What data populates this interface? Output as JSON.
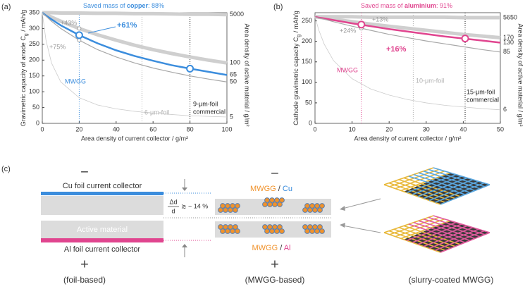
{
  "panels": [
    "(a)",
    "(b)",
    "(c)"
  ],
  "chart_data": [
    {
      "type": "line",
      "saved_mass": [
        "Saved mass of ",
        "copper",
        ": 88%"
      ],
      "title_color": "#3b8ddd",
      "xlabel": "Area density of current collector / g/m²",
      "ylabel": [
        "Gravimetric capacity of anode C",
        "g",
        " / mAh/g"
      ],
      "y2label": "Area density of active material / g/m²",
      "x": [
        0,
        2,
        5,
        10,
        20,
        30,
        40,
        50,
        60,
        70,
        80,
        90,
        100
      ],
      "xlim": [
        0,
        100
      ],
      "xticks": [
        0,
        20,
        40,
        60,
        80,
        100
      ],
      "ylim": [
        0,
        350
      ],
      "yticks": [
        0,
        50,
        100,
        150,
        200,
        250,
        300,
        350
      ],
      "series": [
        {
          "name": "5000",
          "color": "#cfcfcf",
          "line_width": 5,
          "values": [
            350,
            350,
            350,
            349,
            349,
            348,
            348,
            347,
            347,
            346,
            345,
            345,
            344
          ]
        },
        {
          "name": "100",
          "color": "#cfcfcf",
          "line_width": 5,
          "values": [
            350,
            344,
            336,
            323,
            300,
            280,
            263,
            247,
            233,
            221,
            210,
            200,
            191
          ]
        },
        {
          "name": "65",
          "color": "#3b8ddd",
          "line_width": 2.5,
          "values": [
            350,
            341,
            329,
            310,
            279,
            253,
            231,
            213,
            198,
            184,
            173,
            163,
            153
          ]
        },
        {
          "name": "50",
          "color": "#a8a8a8",
          "line_width": 1.2,
          "values": [
            350,
            339,
            323,
            300,
            263,
            233,
            210,
            191,
            175,
            162,
            150,
            140,
            131
          ]
        },
        {
          "name": "5",
          "color": "#cccccc",
          "line_width": 0.8,
          "values": [
            350,
            263,
            191,
            131,
            81,
            58,
            46,
            38,
            32,
            28,
            24,
            22,
            20
          ]
        }
      ],
      "vlines": [
        {
          "x": 20,
          "color": "#3b8ddd"
        },
        {
          "x": 54,
          "color": "#b0b0b0"
        },
        {
          "x": 80,
          "color": "#222222"
        }
      ],
      "points": [
        {
          "x": 20,
          "y": 300,
          "color": "#999999",
          "r": 2.5
        },
        {
          "x": 20,
          "y": 263,
          "color": "#999999",
          "r": 2.5
        },
        {
          "x": 20,
          "y": 279,
          "color": "#3b8ddd",
          "r": 4.5
        },
        {
          "x": 80,
          "y": 173,
          "color": "#3b8ddd",
          "r": 4.5
        }
      ],
      "annotations": [
        {
          "text": "+43%",
          "color": "#999999"
        },
        {
          "text": "+75%",
          "color": "#999999"
        },
        {
          "text": "+61%",
          "color": "#3b8ddd",
          "weight": "bold"
        },
        {
          "text": "MWGG",
          "color": "#3b8ddd"
        },
        {
          "text": "6-μm-foil",
          "color": "#b0b0b0"
        },
        {
          "text": "9-μm-foil",
          "color": "#222222"
        },
        {
          "text": "commercial",
          "color": "#222222"
        }
      ]
    },
    {
      "type": "line",
      "saved_mass": [
        "Saved mass of ",
        "aluminium",
        ": 91%"
      ],
      "title_color": "#e0458f",
      "xlabel": "Area density of current collector / g/m²",
      "ylabel": [
        "Cathode gravimetric capacity C",
        "g",
        " / mAh/g"
      ],
      "y2label": "Area density of active material / g/m²",
      "x": [
        0,
        1,
        2.5,
        5,
        10,
        15,
        20,
        25,
        30,
        35,
        40,
        45,
        50
      ],
      "xlim": [
        0,
        50
      ],
      "xticks": [
        0,
        10,
        20,
        30,
        40,
        50
      ],
      "ylim": [
        0,
        270
      ],
      "yticks": [
        0,
        50,
        100,
        150,
        200,
        250
      ],
      "series": [
        {
          "name": "5650",
          "color": "#cfcfcf",
          "line_width": 5,
          "values": [
            260,
            260,
            260,
            260,
            260,
            259,
            259,
            259,
            259,
            259,
            258,
            258,
            258
          ]
        },
        {
          "name": "170",
          "color": "#cfcfcf",
          "line_width": 5,
          "values": [
            260,
            259,
            257,
            254,
            248,
            242,
            237,
            232,
            227,
            222,
            217,
            213,
            209
          ]
        },
        {
          "name": "130",
          "color": "#e0458f",
          "line_width": 2.5,
          "values": [
            260,
            258,
            256,
            252,
            244,
            237,
            230,
            224,
            218,
            212,
            207,
            202,
            197
          ]
        },
        {
          "name": "85",
          "color": "#a8a8a8",
          "line_width": 1.2,
          "values": [
            260,
            257,
            254,
            248,
            237,
            227,
            217,
            209,
            201,
            194,
            187,
            180,
            174
          ]
        },
        {
          "name": "6",
          "color": "#cccccc",
          "line_width": 0.8,
          "values": [
            260,
            228,
            193,
            153,
            109,
            84,
            69,
            58,
            50,
            44,
            40,
            36,
            33
          ]
        }
      ],
      "vlines": [
        {
          "x": 12.5,
          "color": "#e0458f"
        },
        {
          "x": 26.5,
          "color": "#b0b0b0"
        },
        {
          "x": 40.5,
          "color": "#222222"
        }
      ],
      "points": [
        {
          "x": 12.5,
          "y": 245,
          "color": "#999999",
          "r": 2.5
        },
        {
          "x": 12.5,
          "y": 232,
          "color": "#999999",
          "r": 2.5
        },
        {
          "x": 12.5,
          "y": 241,
          "color": "#e0458f",
          "r": 4.5
        },
        {
          "x": 40.5,
          "y": 207,
          "color": "#e0458f",
          "r": 4.5
        }
      ],
      "annotations": [
        {
          "text": "+13%",
          "color": "#999999"
        },
        {
          "text": "+24%",
          "color": "#999999"
        },
        {
          "text": "+16%",
          "color": "#e0458f",
          "weight": "bold"
        },
        {
          "text": "MWGG",
          "color": "#e0458f"
        },
        {
          "text": "10-μm-foil",
          "color": "#b0b0b0"
        },
        {
          "text": "15-μm-foil",
          "color": "#222222"
        },
        {
          "text": "commercial",
          "color": "#222222"
        }
      ]
    }
  ],
  "diagram": {
    "foil": {
      "minus": "−",
      "cu": "Cu foil current collector",
      "active": "Active material",
      "al": "Al foil current collector",
      "plus": "+",
      "caption": "(foil-based)"
    },
    "delta": [
      "Δd",
      "d",
      "≳ − 14 %"
    ],
    "mwgg": {
      "minus": "−",
      "cu": [
        "MWGG",
        " / ",
        "Cu"
      ],
      "al": [
        "MWGG",
        " / ",
        "Al"
      ],
      "plus": "+",
      "caption": "(MWGG-based)"
    },
    "slurry": {
      "caption": "(slurry-coated MWGG)"
    }
  }
}
